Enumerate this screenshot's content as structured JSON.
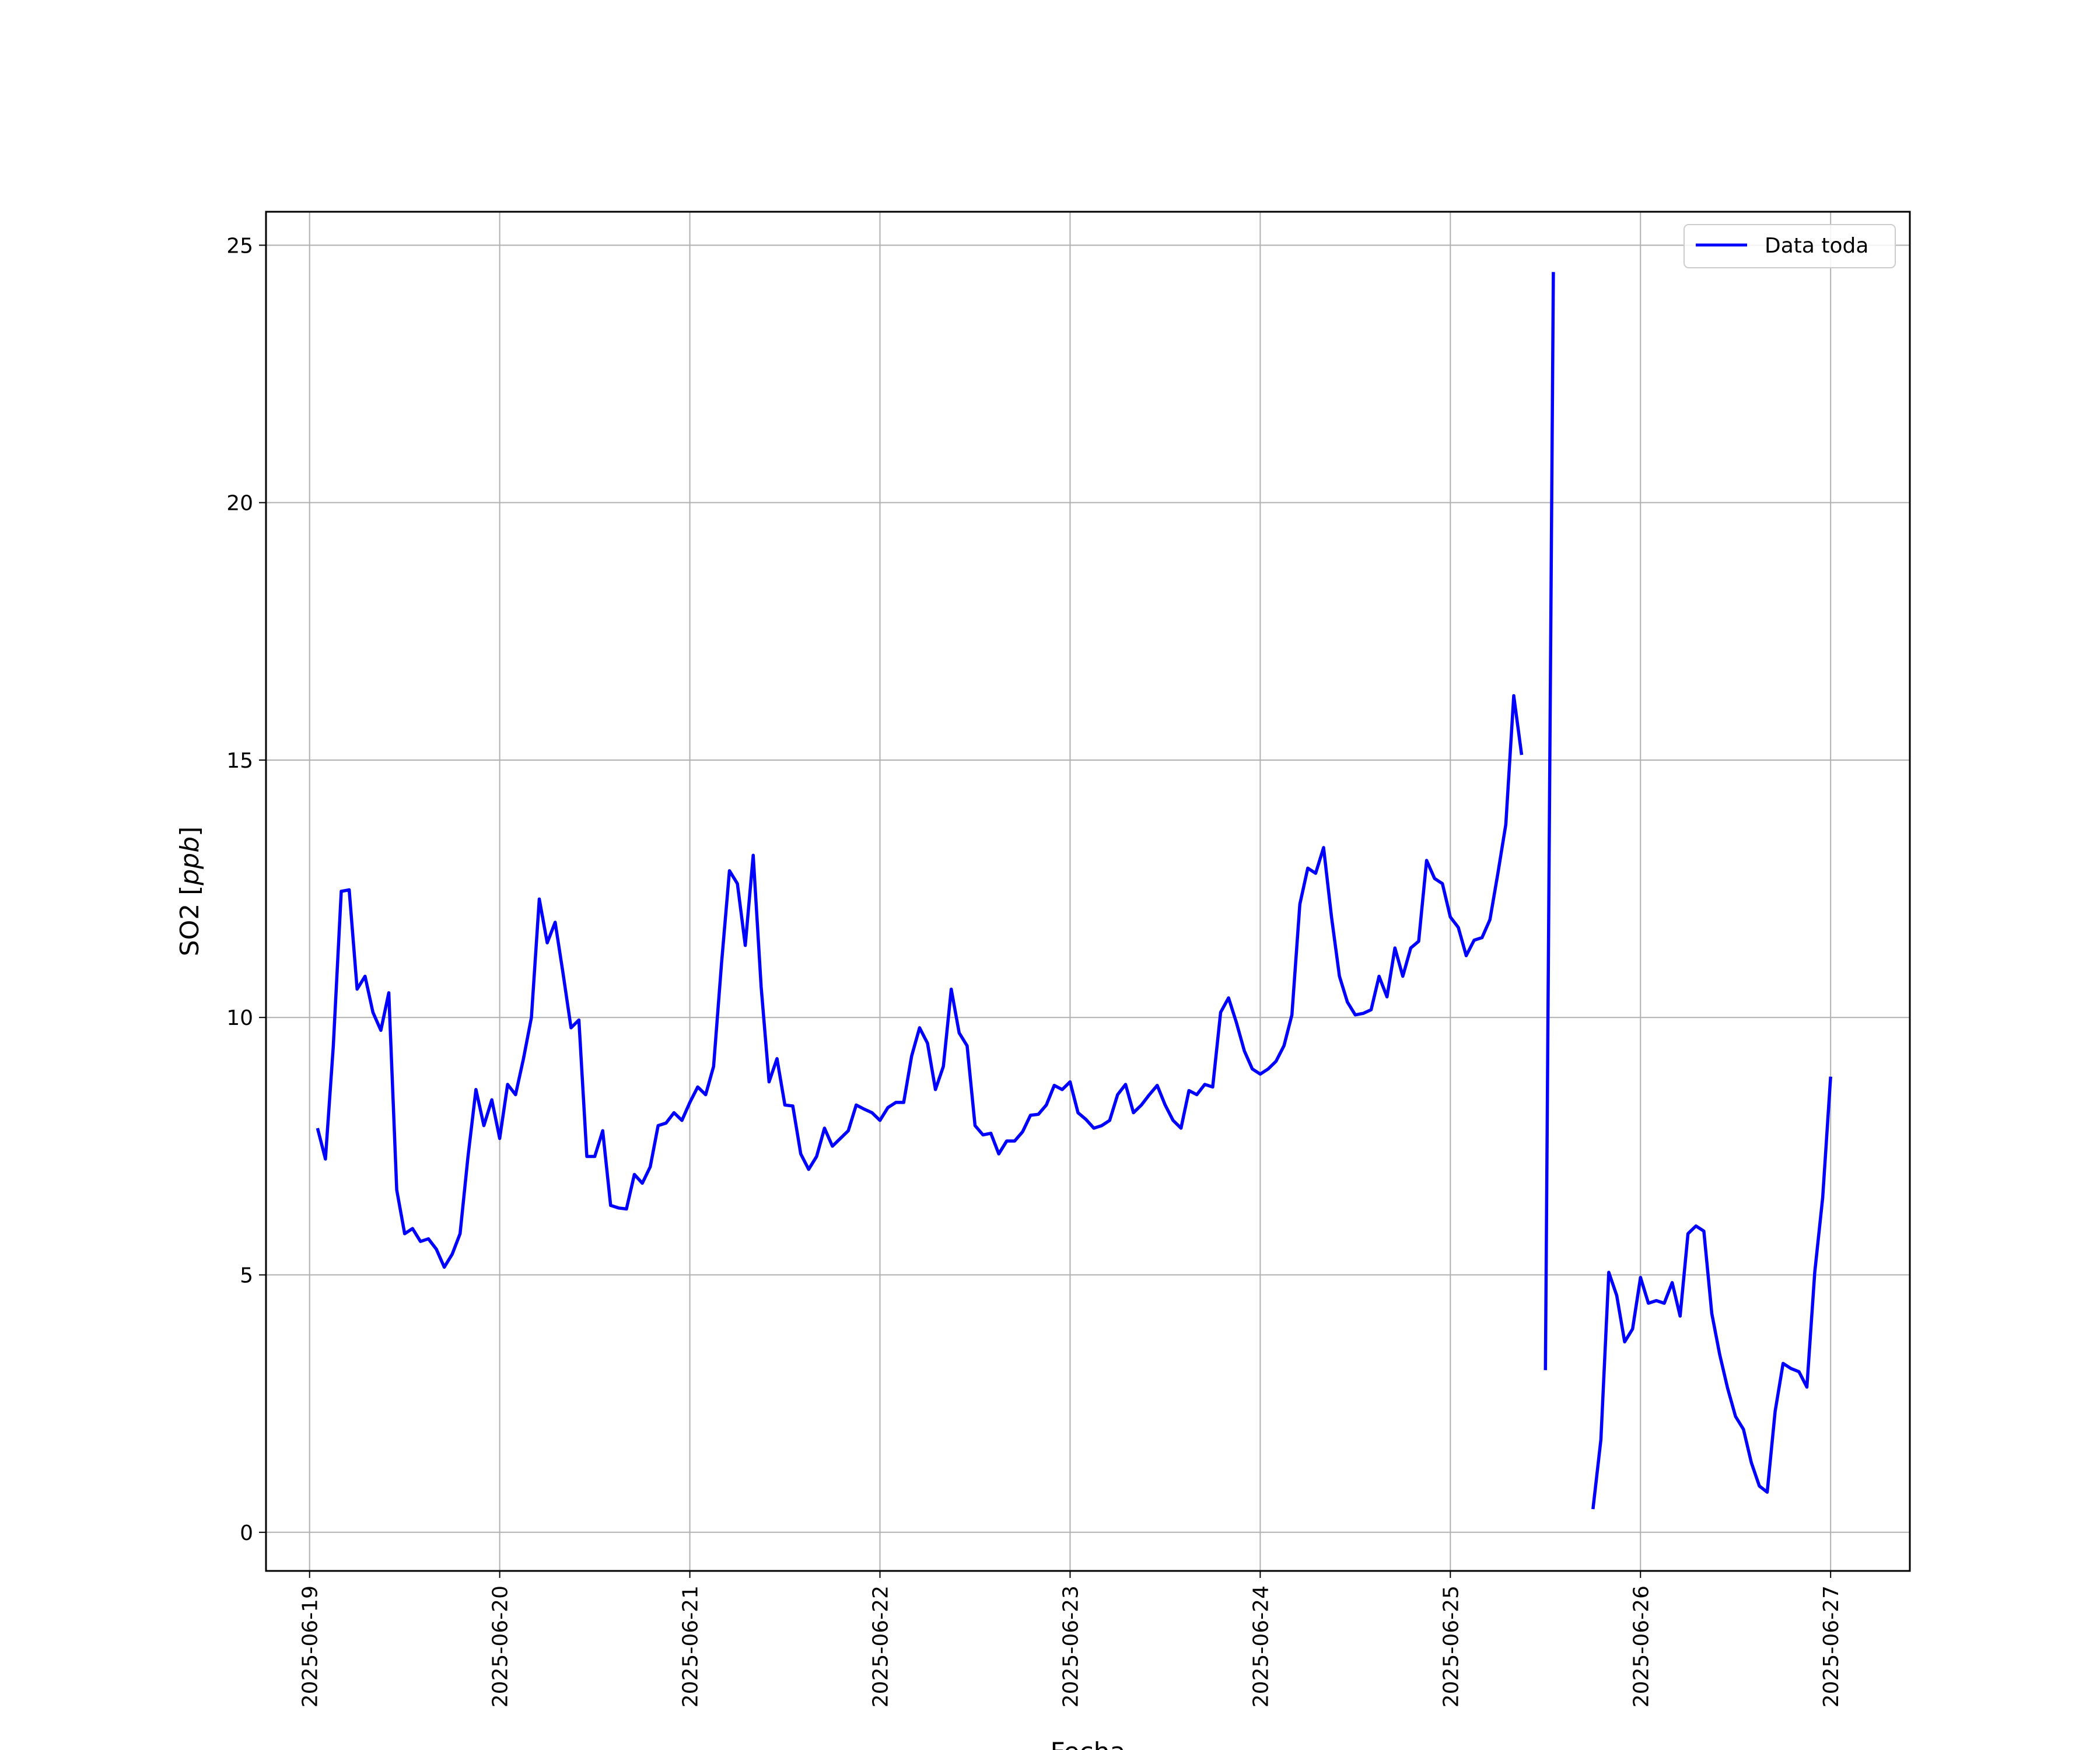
{
  "chart_data": {
    "type": "line",
    "xlabel": "Fecha",
    "ylabel": "SO2 [ppb]",
    "ylabel_parts": {
      "main": "SO2 [",
      "unit": "ppb",
      "close": "]"
    },
    "xlim": [
      "2025-06-18 18:30",
      "2025-06-27 10:00"
    ],
    "ylim": [
      -0.75,
      25.65
    ],
    "yticks": [
      0,
      5,
      10,
      15,
      20,
      25
    ],
    "xticks": [
      "2025-06-19",
      "2025-06-20",
      "2025-06-21",
      "2025-06-22",
      "2025-06-23",
      "2025-06-24",
      "2025-06-25",
      "2025-06-26",
      "2025-06-27"
    ],
    "grid": true,
    "legend": {
      "position": "top-right",
      "entries": [
        {
          "label": "Data toda",
          "color": "#0000ff"
        }
      ]
    },
    "series": [
      {
        "name": "Data toda",
        "color": "#0000ff",
        "points": [
          [
            "2025-06-19 01:00",
            7.85
          ],
          [
            "2025-06-19 02:00",
            7.25
          ],
          [
            "2025-06-19 03:00",
            9.45
          ],
          [
            "2025-06-19 04:00",
            12.45
          ],
          [
            "2025-06-19 05:00",
            12.48
          ],
          [
            "2025-06-19 06:00",
            10.55
          ],
          [
            "2025-06-19 07:00",
            10.8
          ],
          [
            "2025-06-19 08:00",
            10.1
          ],
          [
            "2025-06-19 09:00",
            9.75
          ],
          [
            "2025-06-19 10:00",
            10.48
          ],
          [
            "2025-06-19 11:00",
            6.65
          ],
          [
            "2025-06-19 12:00",
            5.8
          ],
          [
            "2025-06-19 13:00",
            5.9
          ],
          [
            "2025-06-19 14:00",
            5.65
          ],
          [
            "2025-06-19 15:00",
            5.7
          ],
          [
            "2025-06-19 16:00",
            5.5
          ],
          [
            "2025-06-19 17:00",
            5.15
          ],
          [
            "2025-06-19 18:00",
            5.4
          ],
          [
            "2025-06-19 19:00",
            5.8
          ],
          [
            "2025-06-19 20:00",
            7.3
          ],
          [
            "2025-06-19 21:00",
            8.6
          ],
          [
            "2025-06-19 22:00",
            7.9
          ],
          [
            "2025-06-19 23:00",
            8.4
          ],
          [
            "2025-06-20 00:00",
            7.65
          ],
          [
            "2025-06-20 01:00",
            8.7
          ],
          [
            "2025-06-20 02:00",
            8.5
          ],
          [
            "2025-06-20 03:00",
            9.2
          ],
          [
            "2025-06-20 04:00",
            10.0
          ],
          [
            "2025-06-20 05:00",
            12.3
          ],
          [
            "2025-06-20 06:00",
            11.45
          ],
          [
            "2025-06-20 07:00",
            11.85
          ],
          [
            "2025-06-20 08:00",
            10.85
          ],
          [
            "2025-06-20 09:00",
            9.8
          ],
          [
            "2025-06-20 10:00",
            9.95
          ],
          [
            "2025-06-20 11:00",
            7.3
          ],
          [
            "2025-06-20 12:00",
            7.3
          ],
          [
            "2025-06-20 13:00",
            7.8
          ],
          [
            "2025-06-20 14:00",
            6.35
          ],
          [
            "2025-06-20 15:00",
            6.3
          ],
          [
            "2025-06-20 16:00",
            6.28
          ],
          [
            "2025-06-20 17:00",
            6.95
          ],
          [
            "2025-06-20 18:00",
            6.78
          ],
          [
            "2025-06-20 19:00",
            7.1
          ],
          [
            "2025-06-20 20:00",
            7.9
          ],
          [
            "2025-06-20 21:00",
            7.95
          ],
          [
            "2025-06-20 22:00",
            8.15
          ],
          [
            "2025-06-20 23:00",
            8.0
          ],
          [
            "2025-06-21 00:00",
            8.35
          ],
          [
            "2025-06-21 01:00",
            8.65
          ],
          [
            "2025-06-21 02:00",
            8.5
          ],
          [
            "2025-06-21 03:00",
            9.05
          ],
          [
            "2025-06-21 04:00",
            11.05
          ],
          [
            "2025-06-21 05:00",
            12.85
          ],
          [
            "2025-06-21 06:00",
            12.6
          ],
          [
            "2025-06-21 07:00",
            11.4
          ],
          [
            "2025-06-21 08:00",
            13.15
          ],
          [
            "2025-06-21 09:00",
            10.6
          ],
          [
            "2025-06-21 10:00",
            8.75
          ],
          [
            "2025-06-21 11:00",
            9.2
          ],
          [
            "2025-06-21 12:00",
            8.3
          ],
          [
            "2025-06-21 13:00",
            8.28
          ],
          [
            "2025-06-21 14:00",
            7.35
          ],
          [
            "2025-06-21 15:00",
            7.05
          ],
          [
            "2025-06-21 16:00",
            7.3
          ],
          [
            "2025-06-21 17:00",
            7.85
          ],
          [
            "2025-06-21 18:00",
            7.5
          ],
          [
            "2025-06-21 19:00",
            7.65
          ],
          [
            "2025-06-21 20:00",
            7.8
          ],
          [
            "2025-06-21 21:00",
            8.3
          ],
          [
            "2025-06-21 22:00",
            8.22
          ],
          [
            "2025-06-21 23:00",
            8.15
          ],
          [
            "2025-06-22 00:00",
            8.0
          ],
          [
            "2025-06-22 01:00",
            8.25
          ],
          [
            "2025-06-22 02:00",
            8.35
          ],
          [
            "2025-06-22 03:00",
            8.35
          ],
          [
            "2025-06-22 04:00",
            9.25
          ],
          [
            "2025-06-22 05:00",
            9.8
          ],
          [
            "2025-06-22 06:00",
            9.5
          ],
          [
            "2025-06-22 07:00",
            8.6
          ],
          [
            "2025-06-22 08:00",
            9.05
          ],
          [
            "2025-06-22 09:00",
            10.55
          ],
          [
            "2025-06-22 10:00",
            9.7
          ],
          [
            "2025-06-22 11:00",
            9.45
          ],
          [
            "2025-06-22 12:00",
            7.9
          ],
          [
            "2025-06-22 13:00",
            7.72
          ],
          [
            "2025-06-22 14:00",
            7.75
          ],
          [
            "2025-06-22 15:00",
            7.35
          ],
          [
            "2025-06-22 16:00",
            7.6
          ],
          [
            "2025-06-22 17:00",
            7.6
          ],
          [
            "2025-06-22 18:00",
            7.78
          ],
          [
            "2025-06-22 19:00",
            8.1
          ],
          [
            "2025-06-22 20:00",
            8.12
          ],
          [
            "2025-06-22 21:00",
            8.3
          ],
          [
            "2025-06-22 22:00",
            8.68
          ],
          [
            "2025-06-22 23:00",
            8.6
          ],
          [
            "2025-06-23 00:00",
            8.75
          ],
          [
            "2025-06-23 01:00",
            8.15
          ],
          [
            "2025-06-23 02:00",
            8.02
          ],
          [
            "2025-06-23 03:00",
            7.85
          ],
          [
            "2025-06-23 04:00",
            7.9
          ],
          [
            "2025-06-23 05:00",
            8.0
          ],
          [
            "2025-06-23 06:00",
            8.5
          ],
          [
            "2025-06-23 07:00",
            8.7
          ],
          [
            "2025-06-23 08:00",
            8.15
          ],
          [
            "2025-06-23 09:00",
            8.3
          ],
          [
            "2025-06-23 10:00",
            8.5
          ],
          [
            "2025-06-23 11:00",
            8.68
          ],
          [
            "2025-06-23 12:00",
            8.3
          ],
          [
            "2025-06-23 13:00",
            8.0
          ],
          [
            "2025-06-23 14:00",
            7.85
          ],
          [
            "2025-06-23 15:00",
            8.58
          ],
          [
            "2025-06-23 16:00",
            8.5
          ],
          [
            "2025-06-23 17:00",
            8.7
          ],
          [
            "2025-06-23 18:00",
            8.65
          ],
          [
            "2025-06-23 19:00",
            10.1
          ],
          [
            "2025-06-23 20:00",
            10.38
          ],
          [
            "2025-06-23 21:00",
            9.9
          ],
          [
            "2025-06-23 22:00",
            9.35
          ],
          [
            "2025-06-23 23:00",
            9.0
          ],
          [
            "2025-06-24 00:00",
            8.9
          ],
          [
            "2025-06-24 01:00",
            9.0
          ],
          [
            "2025-06-24 02:00",
            9.15
          ],
          [
            "2025-06-24 03:00",
            9.45
          ],
          [
            "2025-06-24 04:00",
            10.05
          ],
          [
            "2025-06-24 05:00",
            12.2
          ],
          [
            "2025-06-24 06:00",
            12.9
          ],
          [
            "2025-06-24 07:00",
            12.8
          ],
          [
            "2025-06-24 08:00",
            13.3
          ],
          [
            "2025-06-24 09:00",
            11.95
          ],
          [
            "2025-06-24 10:00",
            10.8
          ],
          [
            "2025-06-24 11:00",
            10.3
          ],
          [
            "2025-06-24 12:00",
            10.05
          ],
          [
            "2025-06-24 13:00",
            10.08
          ],
          [
            "2025-06-24 14:00",
            10.15
          ],
          [
            "2025-06-24 15:00",
            10.8
          ],
          [
            "2025-06-24 16:00",
            10.4
          ],
          [
            "2025-06-24 17:00",
            11.35
          ],
          [
            "2025-06-24 18:00",
            10.8
          ],
          [
            "2025-06-24 19:00",
            11.35
          ],
          [
            "2025-06-24 20:00",
            11.48
          ],
          [
            "2025-06-24 21:00",
            13.05
          ],
          [
            "2025-06-24 22:00",
            12.7
          ],
          [
            "2025-06-24 23:00",
            12.6
          ],
          [
            "2025-06-25 00:00",
            11.95
          ],
          [
            "2025-06-25 01:00",
            11.75
          ],
          [
            "2025-06-25 02:00",
            11.2
          ],
          [
            "2025-06-25 03:00",
            11.5
          ],
          [
            "2025-06-25 04:00",
            11.55
          ],
          [
            "2025-06-25 05:00",
            11.9
          ],
          [
            "2025-06-25 06:00",
            12.8
          ],
          [
            "2025-06-25 07:00",
            13.75
          ],
          [
            "2025-06-25 08:00",
            16.25
          ],
          [
            "2025-06-25 09:00",
            15.1
          ],
          null,
          [
            "2025-06-25 12:00",
            3.15
          ],
          [
            "2025-06-25 13:00",
            24.48
          ],
          null,
          [
            "2025-06-25 18:00",
            0.45
          ],
          [
            "2025-06-25 19:00",
            1.8
          ],
          [
            "2025-06-25 20:00",
            5.05
          ],
          [
            "2025-06-25 21:00",
            4.6
          ],
          [
            "2025-06-25 22:00",
            3.7
          ],
          [
            "2025-06-25 23:00",
            3.95
          ],
          [
            "2025-06-26 00:00",
            4.95
          ],
          [
            "2025-06-26 01:00",
            4.45
          ],
          [
            "2025-06-26 02:00",
            4.5
          ],
          [
            "2025-06-26 03:00",
            4.45
          ],
          [
            "2025-06-26 04:00",
            4.85
          ],
          [
            "2025-06-26 05:00",
            4.2
          ],
          [
            "2025-06-26 06:00",
            5.8
          ],
          [
            "2025-06-26 07:00",
            5.95
          ],
          [
            "2025-06-26 08:00",
            5.85
          ],
          [
            "2025-06-26 09:00",
            4.25
          ],
          [
            "2025-06-26 10:00",
            3.45
          ],
          [
            "2025-06-26 11:00",
            2.8
          ],
          [
            "2025-06-26 12:00",
            2.25
          ],
          [
            "2025-06-26 13:00",
            2.0
          ],
          [
            "2025-06-26 14:00",
            1.35
          ],
          [
            "2025-06-26 15:00",
            0.9
          ],
          [
            "2025-06-26 16:00",
            0.78
          ],
          [
            "2025-06-26 17:00",
            2.35
          ],
          [
            "2025-06-26 18:00",
            3.28
          ],
          [
            "2025-06-26 19:00",
            3.18
          ],
          [
            "2025-06-26 20:00",
            3.12
          ],
          [
            "2025-06-26 21:00",
            2.82
          ],
          [
            "2025-06-26 22:00",
            5.05
          ],
          [
            "2025-06-26 23:00",
            6.5
          ],
          [
            "2025-06-27 00:00",
            8.85
          ]
        ]
      }
    ]
  }
}
